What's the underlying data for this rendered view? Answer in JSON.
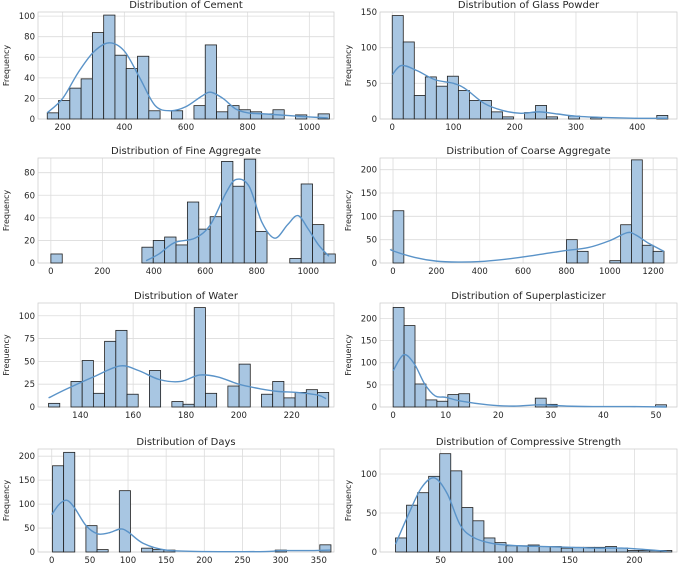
{
  "ylabel": "Frequency",
  "chart_data": [
    {
      "type": "bar",
      "title": "Distribution of Cement",
      "xlabel": "",
      "ylabel": "Frequency",
      "xlim": [
        120,
        1080
      ],
      "ylim": [
        0,
        104
      ],
      "xticks": [
        200,
        400,
        600,
        800,
        1000
      ],
      "yticks": [
        0,
        20,
        40,
        60,
        80,
        100
      ],
      "bin_start": 150,
      "bin_width": 36.6,
      "values": [
        6,
        18,
        30,
        39,
        84,
        101,
        62,
        49,
        61,
        8,
        0,
        8,
        0,
        13,
        72,
        7,
        13,
        9,
        7,
        5,
        9,
        0,
        4,
        0,
        5
      ],
      "kde": [
        [
          150,
          6
        ],
        [
          200,
          20
        ],
        [
          250,
          45
        ],
        [
          300,
          65
        ],
        [
          350,
          74
        ],
        [
          400,
          66
        ],
        [
          450,
          40
        ],
        [
          500,
          13
        ],
        [
          550,
          8
        ],
        [
          600,
          12
        ],
        [
          650,
          22
        ],
        [
          680,
          26
        ],
        [
          720,
          20
        ],
        [
          760,
          10
        ],
        [
          800,
          6
        ],
        [
          850,
          5
        ],
        [
          900,
          4
        ],
        [
          950,
          3
        ],
        [
          1000,
          2
        ],
        [
          1060,
          1
        ]
      ]
    },
    {
      "type": "bar",
      "title": "Distribution of Glass Powder",
      "xlabel": "",
      "ylabel": "Frequency",
      "xlim": [
        -20,
        465
      ],
      "ylim": [
        0,
        150
      ],
      "xticks": [
        0,
        100,
        200,
        300,
        400
      ],
      "yticks": [
        0,
        50,
        100,
        150
      ],
      "bin_start": 0,
      "bin_width": 18,
      "values": [
        145,
        108,
        33,
        59,
        46,
        60,
        40,
        26,
        26,
        10,
        3,
        0,
        9,
        19,
        3,
        0,
        4,
        0,
        2,
        0,
        0,
        0,
        0,
        0,
        5
      ],
      "kde": [
        [
          0,
          62
        ],
        [
          15,
          75
        ],
        [
          40,
          68
        ],
        [
          70,
          55
        ],
        [
          100,
          50
        ],
        [
          120,
          42
        ],
        [
          150,
          22
        ],
        [
          180,
          12
        ],
        [
          210,
          8
        ],
        [
          240,
          10
        ],
        [
          270,
          7
        ],
        [
          300,
          4
        ],
        [
          350,
          2
        ],
        [
          400,
          1
        ],
        [
          450,
          1
        ]
      ]
    },
    {
      "type": "bar",
      "title": "Distribution of Fine Aggregate",
      "xlabel": "",
      "ylabel": "Frequency",
      "xlim": [
        -50,
        1100
      ],
      "ylim": [
        0,
        93
      ],
      "xticks": [
        0,
        200,
        400,
        600,
        800,
        1000
      ],
      "yticks": [
        0,
        20,
        40,
        60,
        80
      ],
      "bin_start": 0,
      "bin_width": 44.2,
      "values": [
        8,
        0,
        0,
        0,
        0,
        0,
        0,
        0,
        14,
        20,
        23,
        16,
        54,
        30,
        41,
        90,
        68,
        92,
        28,
        0,
        0,
        4,
        70,
        34,
        8
      ],
      "kde": [
        [
          370,
          2
        ],
        [
          420,
          8
        ],
        [
          480,
          18
        ],
        [
          560,
          22
        ],
        [
          620,
          34
        ],
        [
          680,
          62
        ],
        [
          720,
          74
        ],
        [
          770,
          68
        ],
        [
          820,
          36
        ],
        [
          870,
          22
        ],
        [
          920,
          34
        ],
        [
          960,
          42
        ],
        [
          1000,
          30
        ],
        [
          1040,
          16
        ],
        [
          1080,
          6
        ]
      ]
    },
    {
      "type": "bar",
      "title": "Distribution of Coarse Aggregate",
      "xlabel": "",
      "ylabel": "Frequency",
      "xlim": [
        -60,
        1310
      ],
      "ylim": [
        0,
        225
      ],
      "xticks": [
        0,
        200,
        400,
        600,
        800,
        1000,
        1200
      ],
      "yticks": [
        0,
        50,
        100,
        150,
        200
      ],
      "bin_start": 0,
      "bin_width": 50,
      "values": [
        112,
        0,
        0,
        0,
        0,
        0,
        0,
        0,
        0,
        0,
        0,
        0,
        0,
        0,
        0,
        0,
        50,
        25,
        0,
        0,
        5,
        82,
        221,
        38,
        25
      ],
      "kde": [
        [
          -10,
          30
        ],
        [
          0,
          26
        ],
        [
          100,
          12
        ],
        [
          200,
          4
        ],
        [
          300,
          2
        ],
        [
          400,
          3
        ],
        [
          500,
          7
        ],
        [
          600,
          13
        ],
        [
          700,
          20
        ],
        [
          800,
          27
        ],
        [
          900,
          33
        ],
        [
          1000,
          48
        ],
        [
          1080,
          65
        ],
        [
          1120,
          60
        ],
        [
          1180,
          42
        ],
        [
          1250,
          25
        ]
      ]
    },
    {
      "type": "bar",
      "title": "Distribution of Water",
      "xlabel": "",
      "ylabel": "Frequency",
      "xlim": [
        124,
        236
      ],
      "ylim": [
        0,
        114
      ],
      "xticks": [
        140,
        160,
        180,
        200,
        220
      ],
      "yticks": [
        0,
        25,
        50,
        75,
        100
      ],
      "bin_start": 128,
      "bin_width": 4.24,
      "values": [
        4,
        0,
        28,
        51,
        15,
        72,
        84,
        14,
        0,
        40,
        0,
        6,
        3,
        109,
        15,
        0,
        23,
        47,
        0,
        14,
        28,
        10,
        16,
        19,
        16
      ],
      "kde": [
        [
          128,
          10
        ],
        [
          135,
          20
        ],
        [
          145,
          33
        ],
        [
          155,
          45
        ],
        [
          162,
          40
        ],
        [
          170,
          30
        ],
        [
          178,
          28
        ],
        [
          185,
          35
        ],
        [
          192,
          33
        ],
        [
          200,
          25
        ],
        [
          208,
          20
        ],
        [
          215,
          17
        ],
        [
          222,
          16
        ],
        [
          230,
          13
        ],
        [
          233,
          9
        ]
      ]
    },
    {
      "type": "bar",
      "title": "Distribution of Superplasticizer",
      "xlabel": "",
      "ylabel": "Frequency",
      "xlim": [
        -2.5,
        54
      ],
      "ylim": [
        0,
        235
      ],
      "xticks": [
        0,
        10,
        20,
        30,
        40,
        50
      ],
      "yticks": [
        0,
        50,
        100,
        150,
        200
      ],
      "bin_start": 0,
      "bin_width": 2.08,
      "values": [
        225,
        184,
        52,
        16,
        13,
        28,
        30,
        0,
        0,
        0,
        0,
        0,
        0,
        20,
        6,
        0,
        0,
        0,
        0,
        0,
        0,
        0,
        0,
        0,
        5
      ],
      "kde": [
        [
          0,
          82
        ],
        [
          2,
          118
        ],
        [
          4,
          98
        ],
        [
          6,
          52
        ],
        [
          8,
          25
        ],
        [
          10,
          22
        ],
        [
          13,
          13
        ],
        [
          18,
          5
        ],
        [
          23,
          2
        ],
        [
          28,
          5
        ],
        [
          33,
          2
        ],
        [
          38,
          1
        ],
        [
          45,
          1
        ],
        [
          52,
          0
        ]
      ]
    },
    {
      "type": "bar",
      "title": "Distribution of Days",
      "xlabel": "",
      "ylabel": "Frequency",
      "xlim": [
        -18,
        370
      ],
      "ylim": [
        0,
        215
      ],
      "xticks": [
        0,
        50,
        100,
        150,
        200,
        250,
        300,
        350
      ],
      "yticks": [
        0,
        50,
        100,
        150,
        200
      ],
      "bin_start": 1,
      "bin_width": 14.6,
      "values": [
        180,
        208,
        0,
        55,
        5,
        0,
        128,
        0,
        8,
        5,
        4,
        0,
        0,
        0,
        0,
        0,
        0,
        0,
        0,
        0,
        4,
        0,
        0,
        0,
        15
      ],
      "kde": [
        [
          0,
          78
        ],
        [
          10,
          100
        ],
        [
          20,
          108
        ],
        [
          30,
          92
        ],
        [
          45,
          55
        ],
        [
          60,
          38
        ],
        [
          75,
          40
        ],
        [
          90,
          48
        ],
        [
          100,
          42
        ],
        [
          120,
          18
        ],
        [
          150,
          4
        ],
        [
          200,
          1
        ],
        [
          280,
          1
        ],
        [
          300,
          3
        ],
        [
          340,
          3
        ],
        [
          365,
          4
        ]
      ]
    },
    {
      "type": "bar",
      "title": "Distribution of Compressive Strength",
      "xlabel": "",
      "ylabel": "Frequency",
      "xlim": [
        3,
        233
      ],
      "ylim": [
        0,
        132
      ],
      "xticks": [
        50,
        100,
        150,
        200
      ],
      "yticks": [
        0,
        50,
        100
      ],
      "bin_start": 15,
      "bin_width": 8.56,
      "values": [
        18,
        60,
        76,
        97,
        126,
        104,
        57,
        40,
        18,
        12,
        8,
        8,
        9,
        7,
        7,
        5,
        6,
        6,
        6,
        7,
        5,
        2,
        2,
        2,
        2
      ],
      "kde": [
        [
          15,
          10
        ],
        [
          25,
          48
        ],
        [
          35,
          82
        ],
        [
          45,
          95
        ],
        [
          55,
          75
        ],
        [
          65,
          35
        ],
        [
          75,
          19
        ],
        [
          90,
          11
        ],
        [
          110,
          8
        ],
        [
          130,
          7
        ],
        [
          150,
          6
        ],
        [
          170,
          5
        ],
        [
          190,
          5
        ],
        [
          210,
          3
        ],
        [
          225,
          1
        ]
      ]
    }
  ]
}
